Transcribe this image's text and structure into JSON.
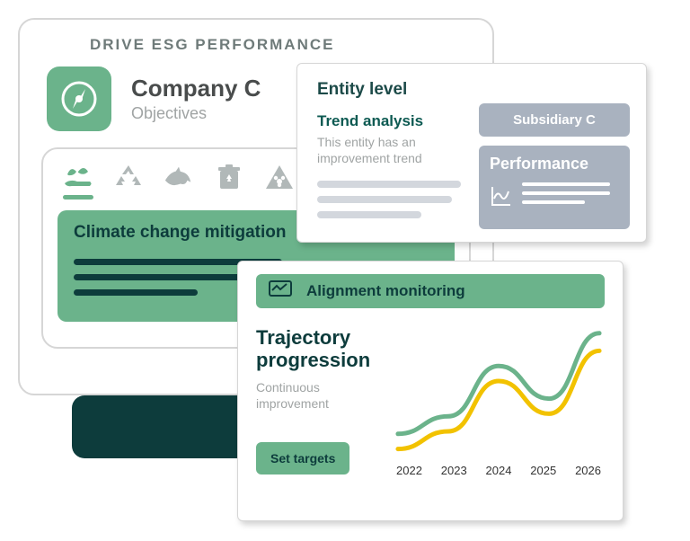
{
  "main": {
    "header": "DRIVE ESG PERFORMANCE",
    "company_name": "Company C",
    "company_subtitle": "Objectives",
    "climate_title": "Climate change mitigation",
    "colors": {
      "accent": "#6bb38b",
      "dark": "#0d3c3c",
      "muted": "#a0a4a4",
      "border": "#d6d6d6",
      "icon_inactive": "#b1b8b8"
    },
    "climate_bars": [
      232,
      232,
      138
    ],
    "objective_icons": [
      "plant-hand",
      "recycle",
      "dolphin",
      "trash-bin",
      "biohazard"
    ],
    "active_objective_index": 0
  },
  "entity": {
    "level_label": "Entity level",
    "trend_title": "Trend analysis",
    "trend_subtitle": "This entity has an improvement trend",
    "placeholder_bars": [
      160,
      150,
      116
    ],
    "subsidiary_label": "Subsidiary C",
    "performance_label": "Performance",
    "perf_bars": [
      98,
      98,
      70
    ],
    "colors": {
      "panel": "#a9b2bf",
      "bar": "#d3d7dd"
    }
  },
  "trajectory": {
    "header": "Alignment monitoring",
    "title": "Trajectory progression",
    "subtitle": "Continuous improvement",
    "button_label": "Set targets",
    "chart": {
      "type": "line",
      "years": [
        "2022",
        "2023",
        "2024",
        "2025",
        "2026"
      ],
      "series": [
        {
          "name": "green",
          "color": "#6bb38b",
          "points": [
            0.82,
            0.68,
            0.28,
            0.54,
            0.02
          ],
          "stroke_width": 5
        },
        {
          "name": "yellow",
          "color": "#f2c200",
          "points": [
            0.94,
            0.8,
            0.4,
            0.66,
            0.16
          ],
          "stroke_width": 5
        }
      ],
      "y_note": "fraction from top (0=top, 1=bottom)"
    }
  }
}
